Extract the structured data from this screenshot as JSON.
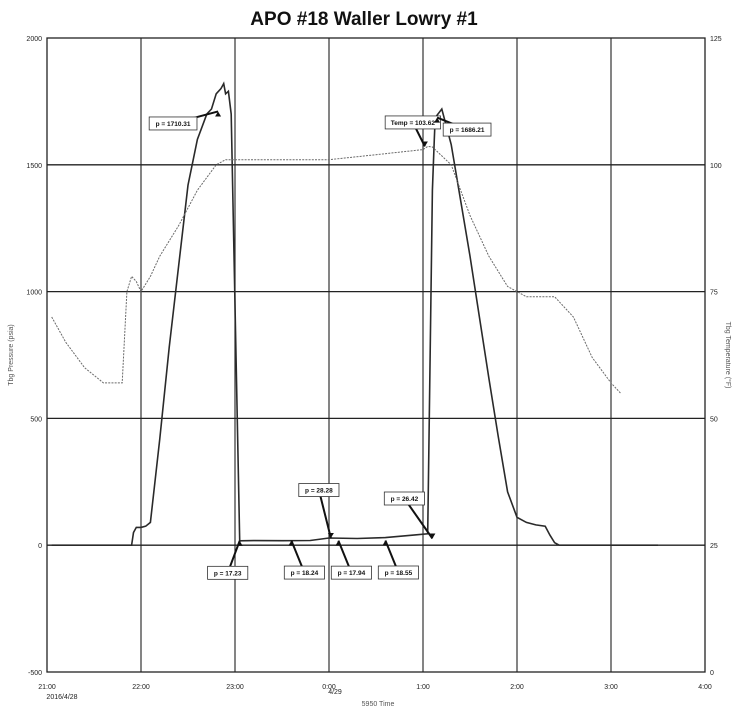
{
  "chart_data": {
    "type": "line",
    "title": "APO #18 Waller Lowry #1",
    "ylabel": "Tbg Pressure (psia)",
    "y2label": "Tbg Temperature (°F)",
    "xlabel": "5950 Time",
    "date_label": "2016/4/28",
    "date_label_2": "4/29",
    "x_tick_labels": [
      "21:00",
      "22:00",
      "23:00",
      "0:00",
      "1:00",
      "2:00",
      "3:00",
      "4:00"
    ],
    "y_tick_labels": [
      "2000",
      "1500",
      "1000",
      "500",
      "0",
      "-500"
    ],
    "y2_tick_labels": [
      "125",
      "100",
      "75",
      "50",
      "25",
      "0"
    ],
    "ylim": [
      -500,
      2000
    ],
    "y2lim": [
      0,
      125
    ],
    "xlim": [
      0,
      7
    ],
    "x_unit": "hours after 21:00 on 2016/4/28",
    "grid": true,
    "series": [
      {
        "name": "Tbg Pressure (psia)",
        "axis": "left",
        "color": "#2a2a2a",
        "x": [
          0.05,
          0.8,
          0.9,
          0.92,
          0.95,
          1.0,
          1.05,
          1.1,
          1.2,
          1.3,
          1.4,
          1.5,
          1.6,
          1.7,
          1.75,
          1.8,
          1.85,
          1.88,
          1.9,
          1.93,
          1.96,
          2.05,
          2.2,
          2.5,
          2.8,
          3.0,
          3.3,
          3.6,
          3.9,
          4.05,
          4.1,
          4.12,
          4.13,
          4.2,
          4.3,
          4.4,
          4.5,
          4.6,
          4.7,
          4.8,
          4.9,
          5.0,
          5.1,
          5.2,
          5.3,
          5.35,
          5.4,
          5.45,
          6.0,
          6.5
        ],
        "y": [
          0,
          0,
          0,
          50,
          70,
          70,
          75,
          90,
          420,
          780,
          1100,
          1420,
          1600,
          1700,
          1720,
          1780,
          1800,
          1820,
          1780,
          1790,
          1700,
          17.23,
          18.24,
          17.94,
          18.55,
          28.28,
          26.42,
          30,
          40,
          45,
          1400,
          1600,
          1686.21,
          1720,
          1580,
          1360,
          1140,
          900,
          660,
          430,
          210,
          110,
          90,
          80,
          75,
          40,
          10,
          0,
          0,
          0
        ]
      },
      {
        "name": "Tbg Temperature (°F)",
        "axis": "right",
        "color": "#6a6a6a",
        "x": [
          0.05,
          0.2,
          0.4,
          0.6,
          0.8,
          0.85,
          0.9,
          0.95,
          1.0,
          1.1,
          1.2,
          1.4,
          1.6,
          1.8,
          1.9,
          2.0,
          2.5,
          3.0,
          3.5,
          4.0,
          4.05,
          4.1,
          4.3,
          4.5,
          4.7,
          4.9,
          5.0,
          5.1,
          5.2,
          5.4,
          5.6,
          5.8,
          6.0,
          6.1
        ],
        "y": [
          70,
          65,
          60,
          57,
          57,
          75,
          78,
          77,
          75,
          78,
          82,
          88,
          95,
          100,
          101,
          101,
          101,
          101,
          102,
          103,
          103.62,
          103.5,
          100,
          90,
          82,
          76,
          75,
          74,
          74,
          74,
          70,
          62,
          57,
          55
        ]
      }
    ],
    "annotations": [
      {
        "label": "p = 1710.31",
        "x": 1.82,
        "y": 1710.31
      },
      {
        "label": "Temp = 103.62",
        "x": 4.02,
        "y": 103.62,
        "axis": "right"
      },
      {
        "label": "p = 1686.21",
        "x": 4.15,
        "y": 1686.21
      },
      {
        "label": "p = 28.28",
        "x": 3.02,
        "y": 28.28
      },
      {
        "label": "p = 26.42",
        "x": 4.1,
        "y": 26.42
      },
      {
        "label": "p = 17.23",
        "x": 2.05,
        "y": 17.23
      },
      {
        "label": "p = 18.24",
        "x": 2.6,
        "y": 18.24
      },
      {
        "label": "p = 17.94",
        "x": 3.1,
        "y": 17.94
      },
      {
        "label": "p = 18.55",
        "x": 3.6,
        "y": 18.55
      }
    ]
  }
}
